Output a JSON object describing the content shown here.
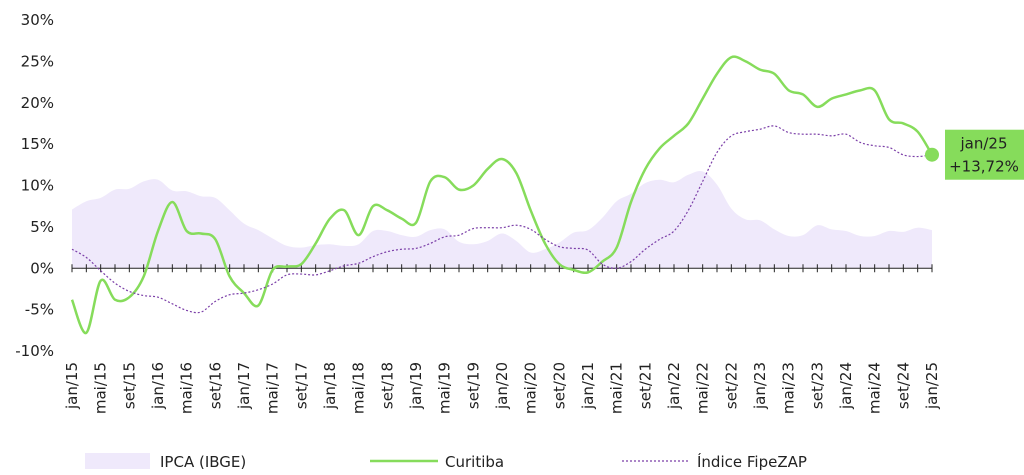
{
  "chart_data": {
    "type": "line",
    "categories": [
      "jan/15",
      null,
      "mai/15",
      null,
      "set/15",
      null,
      "jan/16",
      null,
      "mai/16",
      null,
      "set/16",
      null,
      "jan/17",
      null,
      "mai/17",
      null,
      "set/17",
      null,
      "jan/18",
      null,
      "mai/18",
      null,
      "set/18",
      null,
      "jan/19",
      null,
      "mai/19",
      null,
      "set/19",
      null,
      "jan/20",
      null,
      "mai/20",
      null,
      "set/20",
      null,
      "jan/21",
      null,
      "mai/21",
      null,
      "set/21",
      null,
      "jan/22",
      null,
      "mai/22",
      null,
      "set/22",
      null,
      "jan/23",
      null,
      "mai/23",
      null,
      "set/23",
      null,
      "jan/24",
      null,
      "mai/24",
      null,
      "set/24",
      null,
      "jan/25"
    ],
    "series": [
      {
        "name": "IPCA (IBGE)",
        "color": "#efe9fb",
        "style": "area",
        "values": [
          7.1,
          8.1,
          8.5,
          9.5,
          9.6,
          10.5,
          10.7,
          9.4,
          9.3,
          8.7,
          8.5,
          7.0,
          5.4,
          4.6,
          3.6,
          2.7,
          2.5,
          2.8,
          2.9,
          2.7,
          2.9,
          4.5,
          4.5,
          4.0,
          3.8,
          4.6,
          4.7,
          3.2,
          2.9,
          3.3,
          4.2,
          3.3,
          1.9,
          2.3,
          3.1,
          4.3,
          4.6,
          6.1,
          8.1,
          9.0,
          10.3,
          10.7,
          10.4,
          11.3,
          11.7,
          10.1,
          7.2,
          5.9,
          5.8,
          4.7,
          3.9,
          4.0,
          5.2,
          4.7,
          4.5,
          3.9,
          3.9,
          4.5,
          4.4,
          4.9,
          4.6
        ]
      },
      {
        "name": "Curitiba",
        "color": "#86dc5b",
        "style": "solid",
        "values": [
          -3.8,
          -7.8,
          -1.5,
          -3.8,
          -3.5,
          -1.0,
          4.5,
          8.0,
          4.5,
          4.2,
          3.5,
          -1.0,
          -3.0,
          -4.5,
          -0.2,
          0.2,
          0.5,
          3.0,
          6.0,
          7.0,
          4.0,
          7.5,
          7.0,
          6.0,
          5.5,
          10.5,
          11.0,
          9.5,
          10.0,
          12.0,
          13.2,
          11.5,
          7.0,
          3.0,
          0.5,
          -0.2,
          -0.5,
          0.8,
          2.5,
          8.0,
          12.0,
          14.5,
          16.0,
          17.5,
          20.5,
          23.5,
          25.5,
          25.0,
          24.0,
          23.5,
          21.5,
          21.0,
          19.5,
          20.5,
          21.0,
          21.5,
          21.5,
          18.0,
          17.5,
          16.5,
          13.72
        ]
      },
      {
        "name": "Índice FipeZAP",
        "color": "#7b3fa8",
        "style": "dotted",
        "values": [
          2.3,
          1.3,
          -0.3,
          -1.8,
          -2.8,
          -3.3,
          -3.5,
          -4.3,
          -5.1,
          -5.3,
          -4.0,
          -3.2,
          -3.0,
          -2.6,
          -1.9,
          -0.8,
          -0.7,
          -0.8,
          -0.3,
          0.3,
          0.6,
          1.4,
          2.0,
          2.3,
          2.4,
          3.0,
          3.8,
          4.0,
          4.8,
          4.9,
          4.9,
          5.2,
          4.7,
          3.5,
          2.6,
          2.4,
          2.2,
          0.5,
          0.0,
          0.8,
          2.3,
          3.5,
          4.5,
          7.0,
          10.5,
          14.0,
          16.0,
          16.5,
          16.8,
          17.2,
          16.4,
          16.2,
          16.2,
          16.0,
          16.2,
          15.2,
          14.8,
          14.6,
          13.7,
          13.5,
          13.72
        ]
      }
    ],
    "ylim": [
      -10,
      30
    ],
    "yticks": [
      {
        "value": -10,
        "label": "-10%"
      },
      {
        "value": -5,
        "label": "-5%"
      },
      {
        "value": 0,
        "label": "0%"
      },
      {
        "value": 5,
        "label": "5%"
      },
      {
        "value": 10,
        "label": "10%"
      },
      {
        "value": 15,
        "label": "15%"
      },
      {
        "value": 20,
        "label": "20%"
      },
      {
        "value": 25,
        "label": "25%"
      },
      {
        "value": 30,
        "label": "30%"
      }
    ],
    "grid": false,
    "annotation": {
      "label": "jan/25",
      "value_label": "+13,72%",
      "value": 13.72
    }
  }
}
